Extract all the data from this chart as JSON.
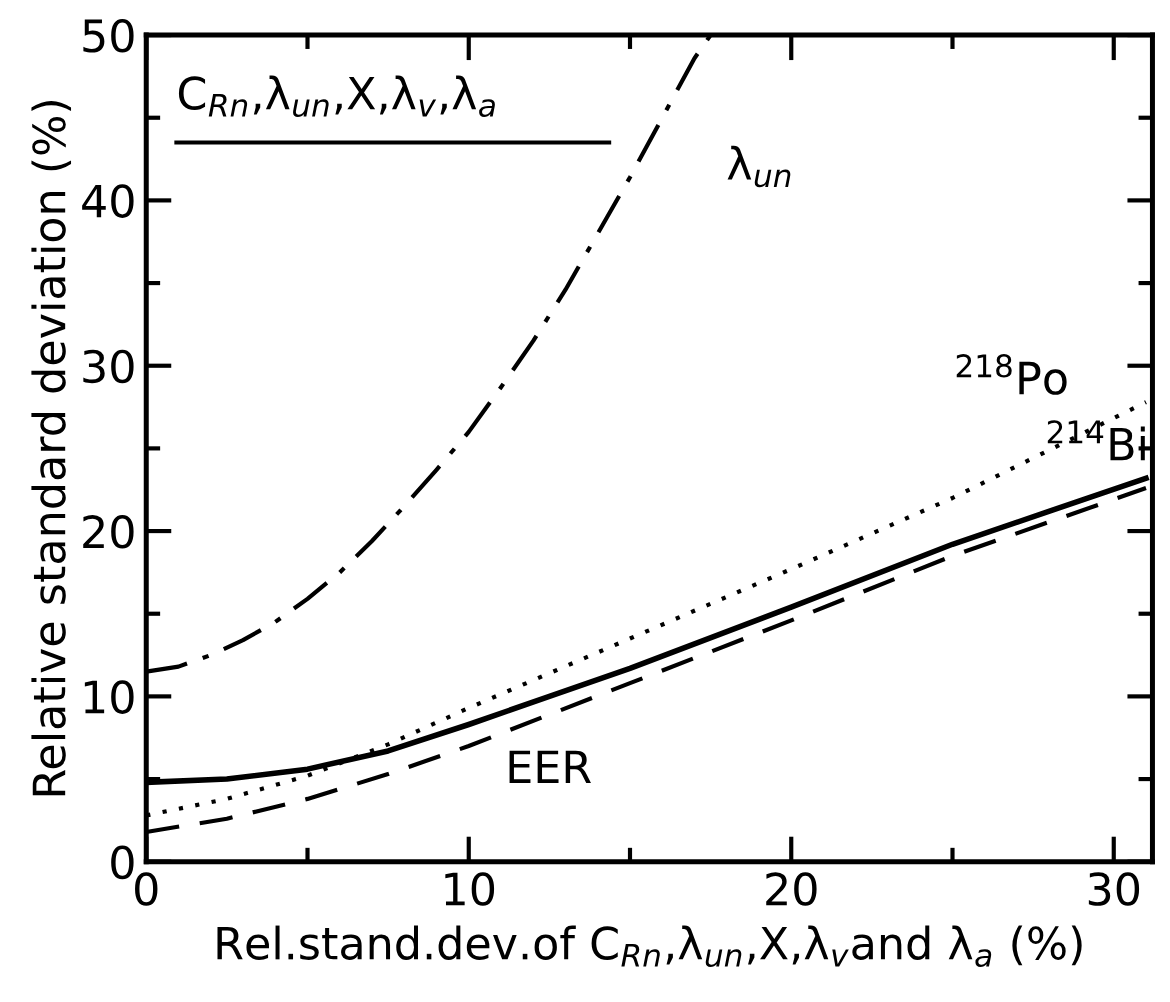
{
  "chart_data": {
    "type": "line",
    "xlabel": "Rel.stand.dev.of C$_{Rn}$,λ$_{un}$,X,λ$_{v}$and λ$_{a}$ (%)",
    "ylabel": "Relative standard deviation (%)",
    "x": [
      0,
      1,
      2,
      3,
      4,
      5,
      6,
      7,
      8,
      9,
      10,
      11,
      12,
      13,
      14,
      15,
      16,
      17,
      17.5
    ],
    "series": [
      {
        "color": "#000000",
        "line_style": "dashdot",
        "values": [
          11.5,
          11.8,
          12.5,
          13.4,
          14.5,
          15.9,
          17.5,
          19.4,
          21.5,
          23.7,
          26,
          28.7,
          31.5,
          34.6,
          38,
          41.4,
          45,
          48.6,
          50
        ]
      },
      {
        "color": "#000000",
        "line_style": "solid",
        "x": [
          0,
          2.5,
          5,
          7.5,
          10,
          12.5,
          15,
          20,
          25,
          31
        ],
        "values": [
          4.8,
          5.0,
          5.6,
          6.7,
          8.3,
          10,
          11.7,
          15.4,
          19.2,
          23.2
        ]
      },
      {
        "color": "#000000",
        "line_style": "dashed",
        "x": [
          0,
          2.5,
          5,
          7.5,
          10,
          12.5,
          15,
          20,
          25,
          31
        ],
        "values": [
          1.8,
          2.6,
          3.8,
          5.3,
          7,
          8.9,
          10.8,
          14.6,
          18.5,
          22.6
        ]
      },
      {
        "color": "#000000",
        "line_style": "dotted",
        "x": [
          0,
          2.5,
          5,
          7.5,
          10,
          12.5,
          15,
          20,
          25,
          31
        ],
        "values": [
          2.8,
          3.8,
          5.2,
          7.1,
          9.3,
          11.4,
          13.5,
          17.7,
          22,
          27.8
        ]
      }
    ],
    "annotations": [
      "C$_{Rn}$,λ$_{un}$,X,λ$_{v}$,λ$_{a}$",
      "λ$_{un}$",
      "$^{218}$Po",
      "$^{214}$Bi",
      "EER"
    ],
    "xlim": [
      0,
      31.2
    ],
    "ylim": [
      0,
      50
    ],
    "xticks": [
      0,
      {
        "value": 5,
        "label": null
      },
      10,
      {
        "value": 15,
        "label": null
      },
      20,
      {
        "value": 25,
        "label": null
      },
      30
    ],
    "yticks": [
      0,
      {
        "value": 5,
        "label": null
      },
      10,
      {
        "value": 15,
        "label": null
      },
      20,
      {
        "value": 25,
        "label": null
      },
      30,
      {
        "value": 35,
        "label": null
      },
      40,
      {
        "value": 45,
        "label": null
      },
      50
    ],
    "grid": false,
    "legend": false
  }
}
